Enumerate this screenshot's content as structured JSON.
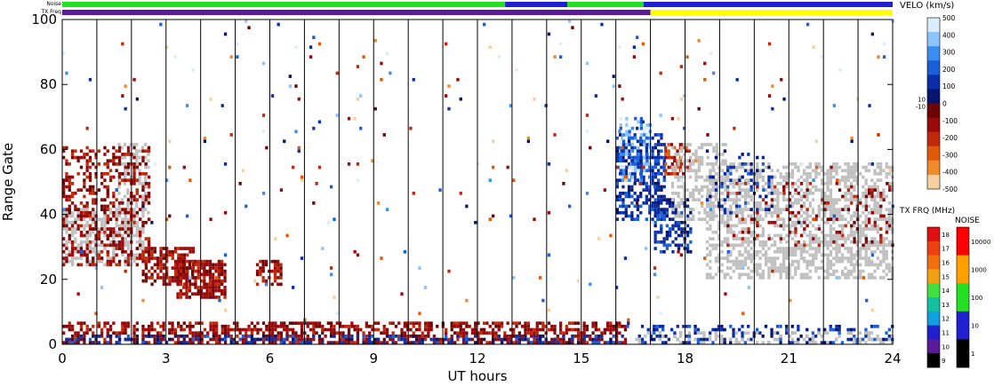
{
  "chart_data": {
    "type": "heatmap",
    "xlabel": "UT hours",
    "ylabel": "Range Gate",
    "xlim": [
      0,
      24
    ],
    "ylim": [
      0,
      100
    ],
    "x_ticks": [
      "0",
      "3",
      "6",
      "9",
      "12",
      "15",
      "18",
      "21",
      "24"
    ],
    "y_ticks": [
      "0",
      "20",
      "40",
      "60",
      "80",
      "100"
    ],
    "hour_gridlines": true,
    "strips": {
      "noise_label": "Noise",
      "txfreq_label": "TX Freq",
      "noise_segments": [
        {
          "from": 0,
          "to": 12.8,
          "color": "#22e022"
        },
        {
          "from": 12.8,
          "to": 14.6,
          "color": "#2020d0"
        },
        {
          "from": 14.6,
          "to": 16.8,
          "color": "#22e022"
        },
        {
          "from": 16.8,
          "to": 24,
          "color": "#2020d0"
        }
      ],
      "txfreq_segments": [
        {
          "from": 0,
          "to": 17,
          "color": "#5a1a9a"
        },
        {
          "from": 17,
          "to": 24,
          "color": "#ffff00"
        }
      ]
    },
    "velocity_colorbar": {
      "title": "VELO (km/s)",
      "stops": [
        {
          "value": 500,
          "color": "#dcecff"
        },
        {
          "value": 400,
          "color": "#8cc4ff"
        },
        {
          "value": 300,
          "color": "#3a8ef0"
        },
        {
          "value": 200,
          "color": "#1a5ed8"
        },
        {
          "value": 100,
          "color": "#0a2ea8"
        },
        {
          "value": 10,
          "color": "#05156e"
        },
        {
          "value": -10,
          "color": "#6e0404"
        },
        {
          "value": -100,
          "color": "#9a0a0a"
        },
        {
          "value": -200,
          "color": "#c02a0a"
        },
        {
          "value": -300,
          "color": "#e05a0a"
        },
        {
          "value": -400,
          "color": "#f08a2a"
        },
        {
          "value": -500,
          "color": "#f8d0a0"
        }
      ],
      "ticks": [
        "500",
        "400",
        "300",
        "200",
        "100",
        "0",
        "-100",
        "-200",
        "-300",
        "-400",
        "-500"
      ],
      "small_labels": [
        "10",
        "-10"
      ]
    },
    "txfreq_colorbar": {
      "title": "TX FRQ (MHz)",
      "ticks": [
        "18",
        "17",
        "16",
        "15",
        "14",
        "13",
        "12",
        "11",
        "10",
        "9"
      ],
      "colors": [
        "#e01010",
        "#f04010",
        "#f07010",
        "#f0a010",
        "#40e040",
        "#10c0a0",
        "#10a0e0",
        "#2020d0",
        "#5a1a9a",
        "#000000"
      ]
    },
    "noise_colorbar": {
      "title": "NOISE",
      "ticks": [
        "10000",
        "1000",
        "100",
        "10",
        "1"
      ],
      "colors": [
        "#ff0000",
        "#ffa000",
        "#22e022",
        "#2020d0",
        "#000000"
      ]
    },
    "ground_scatter_color": "#c0c0c0",
    "scatter_regions": [
      {
        "t0": 0.0,
        "t1": 2.3,
        "g0": 24,
        "g1": 42,
        "kind": "ground",
        "density": 0.55
      },
      {
        "t0": 1.6,
        "t1": 2.5,
        "g0": 40,
        "g1": 62,
        "kind": "ground",
        "density": 0.45
      },
      {
        "t0": 0.0,
        "t1": 2.5,
        "g0": 24,
        "g1": 61,
        "kind": "neg",
        "density": 0.35
      },
      {
        "t0": 2.3,
        "t1": 3.8,
        "g0": 18,
        "g1": 30,
        "kind": "neg",
        "density": 0.65
      },
      {
        "t0": 3.3,
        "t1": 4.7,
        "g0": 14,
        "g1": 26,
        "kind": "neg",
        "density": 0.75
      },
      {
        "t0": 5.6,
        "t1": 6.3,
        "g0": 18,
        "g1": 26,
        "kind": "neg",
        "density": 0.55
      },
      {
        "t0": 16.0,
        "t1": 17.4,
        "g0": 38,
        "g1": 65,
        "kind": "pos",
        "density": 0.55
      },
      {
        "t0": 16.1,
        "t1": 17.0,
        "g0": 50,
        "g1": 70,
        "kind": "poshi",
        "density": 0.4
      },
      {
        "t0": 17.1,
        "t1": 18.2,
        "g0": 28,
        "g1": 45,
        "kind": "pos",
        "density": 0.45
      },
      {
        "t0": 17.4,
        "t1": 18.1,
        "g0": 52,
        "g1": 62,
        "kind": "negmid",
        "density": 0.55
      },
      {
        "t0": 17.6,
        "t1": 19.2,
        "g0": 38,
        "g1": 62,
        "kind": "ground",
        "density": 0.4
      },
      {
        "t0": 18.6,
        "t1": 24.0,
        "g0": 20,
        "g1": 56,
        "kind": "ground",
        "density": 0.5
      },
      {
        "t0": 19.2,
        "t1": 24.0,
        "g0": 30,
        "g1": 50,
        "kind": "neg",
        "density": 0.12
      },
      {
        "t0": 18.6,
        "t1": 20.5,
        "g0": 40,
        "g1": 60,
        "kind": "pos",
        "density": 0.15
      },
      {
        "t0": 0.0,
        "t1": 16.3,
        "g0": 0,
        "g1": 7,
        "kind": "neg",
        "density": 0.55
      },
      {
        "t0": 0.0,
        "t1": 16.3,
        "g0": 0,
        "g1": 3,
        "kind": "pos",
        "density": 0.35
      },
      {
        "t0": 16.3,
        "t1": 24.0,
        "g0": 0,
        "g1": 6,
        "kind": "pos",
        "density": 0.3
      },
      {
        "t0": 16.3,
        "t1": 24.0,
        "g0": 0,
        "g1": 4,
        "kind": "ground",
        "density": 0.25
      },
      {
        "t0": 0.0,
        "t1": 24.0,
        "g0": 6,
        "g1": 100,
        "kind": "sparse",
        "density": 0.012
      }
    ]
  }
}
